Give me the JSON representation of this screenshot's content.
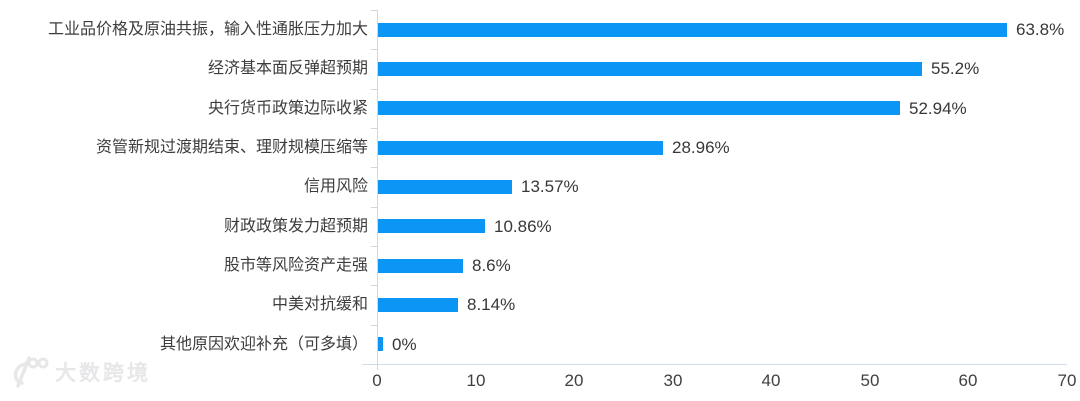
{
  "chart_data": {
    "type": "bar",
    "orientation": "horizontal",
    "title": "",
    "xlabel": "",
    "ylabel": "",
    "categories": [
      "工业品价格及原油共振，输入性通胀压力加大",
      "经济基本面反弹超预期",
      "央行货币政策边际收紧",
      "资管新规过渡期结束、理财规模压缩等",
      "信用风险",
      "财政政策发力超预期",
      "股市等风险资产走强",
      "中美对抗缓和",
      "其他原因欢迎补充（可多填）"
    ],
    "values": [
      63.8,
      55.2,
      52.94,
      28.96,
      13.57,
      10.86,
      8.6,
      8.14,
      0
    ],
    "value_labels": [
      "63.8%",
      "55.2%",
      "52.94%",
      "28.96%",
      "13.57%",
      "10.86%",
      "8.6%",
      "8.14%",
      "0%"
    ],
    "x_ticks": [
      "0",
      "10",
      "20",
      "30",
      "40",
      "50",
      "60",
      "70"
    ],
    "xlim": [
      0,
      70
    ],
    "grid": false,
    "legend": "none",
    "bar_color": "#0b96f5",
    "text_color": "#3d3d3d",
    "axis_color": "#ccd7e6"
  },
  "watermark": {
    "text": "大数跨境",
    "logo": "dashukuajing-100-logo",
    "color": "#e7e7e9"
  }
}
